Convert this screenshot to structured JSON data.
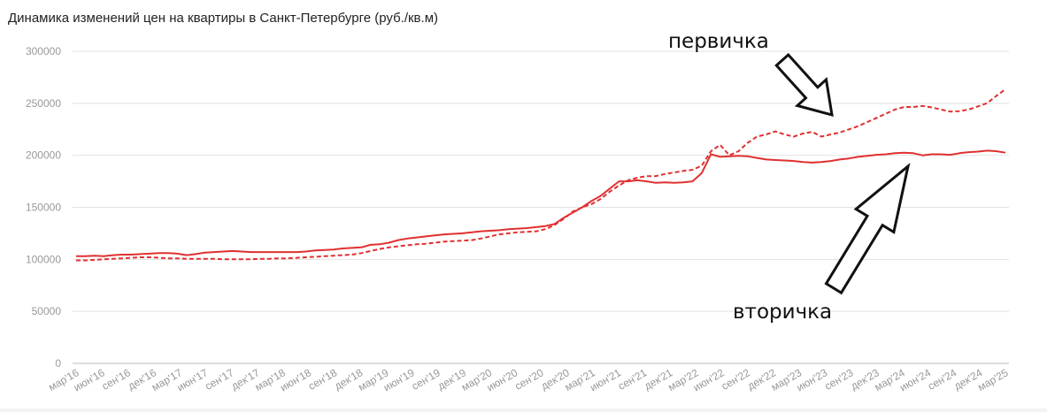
{
  "title": "Динамика изменений цен на квартиры в Санкт-Петербурге (руб./кв.м)",
  "annotations": {
    "primary": "первичка",
    "secondary": "вторичка"
  },
  "colors": {
    "series": "#e03030",
    "grid": "#e2e2e2",
    "axis": "#999999",
    "text": "#222222"
  },
  "chart_data": {
    "type": "line",
    "title": "Динамика изменений цен на квартиры в Санкт-Петербурге (руб./кв.м)",
    "ylim": [
      0,
      300000
    ],
    "yticks": [
      0,
      50000,
      100000,
      150000,
      200000,
      250000,
      300000
    ],
    "grid": true,
    "legend": "none",
    "xtick_labels": [
      "мар'16",
      "июн'16",
      "сен'16",
      "дек'16",
      "мар'17",
      "июн'17",
      "сен'17",
      "дек'17",
      "мар'18",
      "июн'18",
      "сен'18",
      "дек'18",
      "мар'19",
      "июн'19",
      "сен'19",
      "дек'19",
      "мар'20",
      "июн'20",
      "сен'20",
      "дек'20",
      "мар'21",
      "июн'21",
      "сен'21",
      "дек'21",
      "мар'22",
      "июн'22",
      "сен'22",
      "дек'22",
      "мар'23",
      "июн'23",
      "сен'23",
      "дек'23",
      "мар'24",
      "июн'24",
      "сен'24",
      "дек'24",
      "мар'25"
    ],
    "series": [
      {
        "name": "вторичка",
        "style": "solid",
        "values": [
          103000,
          103000,
          103500,
          103000,
          104000,
          104500,
          104500,
          105000,
          105500,
          106000,
          106000,
          105500,
          104000,
          105000,
          106500,
          107000,
          107500,
          108000,
          107500,
          107000,
          107000,
          107000,
          107000,
          107000,
          107000,
          107500,
          108500,
          109000,
          109500,
          110500,
          111000,
          111500,
          114000,
          114500,
          116000,
          118500,
          120000,
          121000,
          122000,
          123000,
          124000,
          124500,
          125000,
          126000,
          127000,
          127500,
          128000,
          129000,
          129500,
          130000,
          131000,
          132000,
          134000,
          140000,
          145000,
          150000,
          156000,
          161000,
          168000,
          175000,
          175000,
          176000,
          175000,
          173500,
          174000,
          173500,
          174000,
          175000,
          183000,
          201000,
          198500,
          199000,
          199500,
          199000,
          197500,
          196000,
          195500,
          195000,
          194500,
          193500,
          193000,
          193500,
          194500,
          196000,
          197000,
          198500,
          199500,
          200500,
          201000,
          202000,
          202500,
          202000,
          200000,
          201000,
          201000,
          200500,
          202000,
          203000,
          203500,
          204500,
          204000,
          202500
        ]
      },
      {
        "name": "первичка",
        "style": "dashed",
        "values": [
          99000,
          99000,
          99500,
          100000,
          100500,
          101000,
          101500,
          102000,
          102000,
          101500,
          101000,
          101000,
          100500,
          100500,
          100500,
          100500,
          100000,
          100000,
          100000,
          100000,
          100500,
          100500,
          101000,
          101000,
          101500,
          102000,
          102500,
          103000,
          103500,
          104000,
          104500,
          106000,
          108000,
          110000,
          111500,
          112500,
          113500,
          114500,
          115000,
          116000,
          117000,
          117500,
          118000,
          118500,
          120000,
          122000,
          124000,
          125000,
          126000,
          126500,
          127000,
          129000,
          133000,
          139000,
          146000,
          150000,
          153000,
          158000,
          165000,
          171000,
          176000,
          178500,
          180000,
          180000,
          182000,
          183500,
          185000,
          186000,
          190000,
          204000,
          210000,
          200000,
          204000,
          212000,
          218000,
          220000,
          223000,
          220000,
          218000,
          221000,
          222500,
          218000,
          220000,
          222000,
          225000,
          228000,
          232000,
          236000,
          240000,
          244000,
          246500,
          246500,
          247500,
          246000,
          244000,
          242000,
          242500,
          244000,
          247000,
          250000,
          257000,
          263500
        ]
      }
    ]
  }
}
